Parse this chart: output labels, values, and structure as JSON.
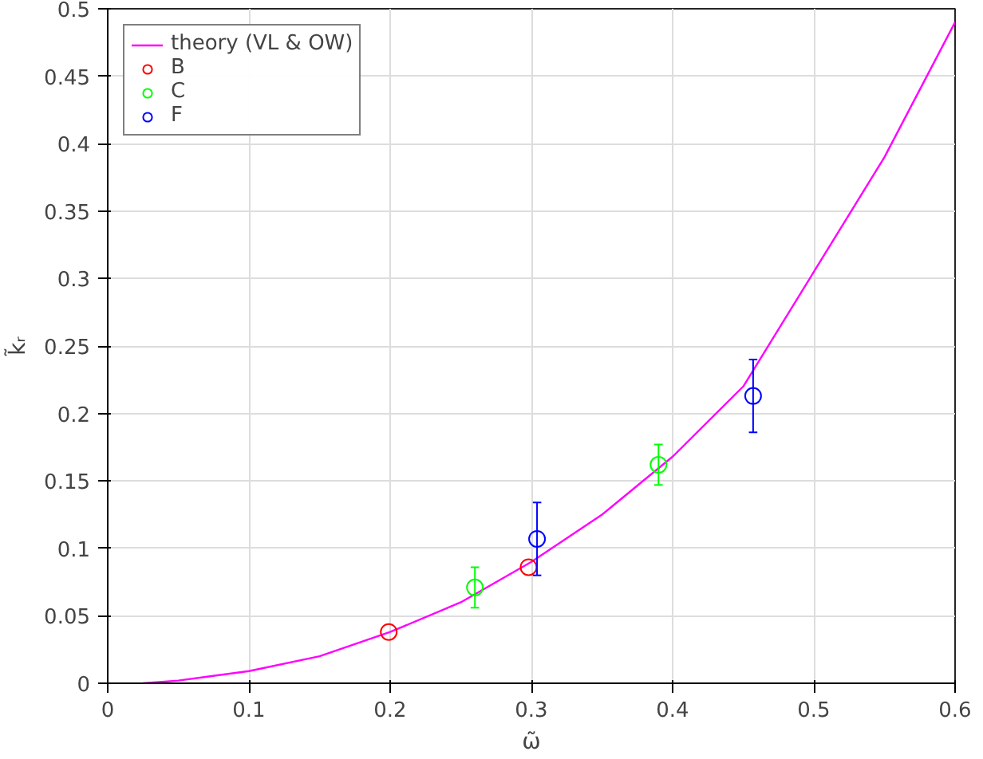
{
  "chart_data": {
    "type": "scatter",
    "xlabel": "ω̃",
    "ylabel": "k̃ᵣ",
    "xlim": [
      0,
      0.6
    ],
    "ylim": [
      0,
      0.5
    ],
    "xticks": [
      0,
      0.1,
      0.2,
      0.3,
      0.4,
      0.5,
      0.6
    ],
    "yticks": [
      0,
      0.05,
      0.1,
      0.15,
      0.2,
      0.25,
      0.3,
      0.35,
      0.4,
      0.45,
      0.5
    ],
    "grid": true,
    "legend": "top left",
    "marker": "circle",
    "series": [
      {
        "name": "theory (VL & OW)",
        "type": "line",
        "marker": "none",
        "color": "#ff00ff",
        "x": [
          0.025,
          0.05,
          0.1,
          0.15,
          0.2,
          0.25,
          0.3,
          0.35,
          0.4,
          0.45,
          0.5,
          0.55,
          0.6
        ],
        "values": [
          0,
          0.002,
          0.009,
          0.02,
          0.038,
          0.06,
          0.09,
          0.125,
          0.168,
          0.22,
          0.305,
          0.39,
          0.49
        ]
      },
      {
        "name": "B",
        "color": "#ff0000",
        "x": [
          0.199,
          0.298
        ],
        "values": [
          0.038,
          0.086
        ],
        "errors": [
          null,
          null
        ]
      },
      {
        "name": "C",
        "color": "#00ff00",
        "x": [
          0.26,
          0.39
        ],
        "values": [
          0.071,
          0.162
        ],
        "errors": [
          0.015,
          0.015
        ]
      },
      {
        "name": "F",
        "color": "#0000ff",
        "x": [
          0.304,
          0.457
        ],
        "values": [
          0.107,
          0.213
        ],
        "errors": [
          [
            0.08,
            0.134
          ],
          [
            0.186,
            0.24
          ]
        ]
      }
    ]
  }
}
